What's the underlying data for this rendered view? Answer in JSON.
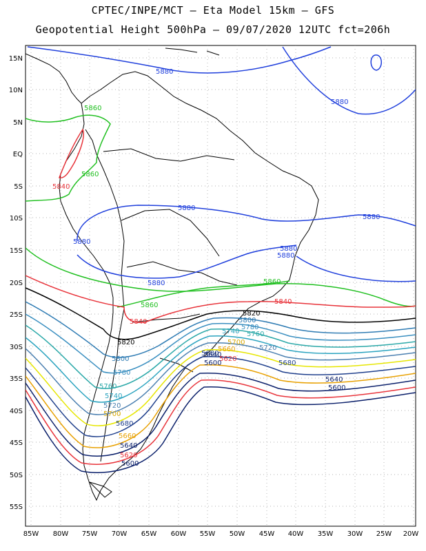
{
  "header": {
    "line1": "CPTEC/INPE/MCT –  Eta Model 15km – GFS",
    "line2": "Geopotential Height 500hPa – 09/07/2020 12UTC fct=206h"
  },
  "axes": {
    "lat_labels": [
      "15N",
      "10N",
      "5N",
      "EQ",
      "5S",
      "10S",
      "15S",
      "20S",
      "25S",
      "30S",
      "35S",
      "40S",
      "45S",
      "50S",
      "55S"
    ],
    "lon_labels": [
      "85W",
      "80W",
      "75W",
      "70W",
      "65W",
      "60W",
      "55W",
      "50W",
      "45W",
      "40W",
      "35W",
      "30W",
      "25W",
      "20W"
    ]
  },
  "contours": [
    {
      "level": "5880",
      "color": "#1f3fdc"
    },
    {
      "level": "5860",
      "color": "#22c022"
    },
    {
      "level": "5840",
      "color": "#e8333a"
    },
    {
      "level": "5820",
      "color": "#000000"
    },
    {
      "level": "5800",
      "color": "#2e7bb3"
    },
    {
      "level": "5780",
      "color": "#3a8fc0"
    },
    {
      "level": "5760",
      "color": "#2aa8a8"
    },
    {
      "level": "5740",
      "color": "#2aa3bf"
    },
    {
      "level": "5720",
      "color": "#4a7fb0"
    },
    {
      "level": "5700",
      "color": "#e6e600"
    },
    {
      "level": "5680",
      "color": "#1f3f8c"
    },
    {
      "level": "5660",
      "color": "#e8a000"
    },
    {
      "level": "5640",
      "color": "#0a1f6a"
    },
    {
      "level": "5620",
      "color": "#e8333a"
    },
    {
      "level": "5600",
      "color": "#0a1f6a"
    }
  ],
  "contour_labels": [
    {
      "text": "5880",
      "color": "#1f3fdc"
    },
    {
      "text": "5880",
      "color": "#1f3fdc"
    },
    {
      "text": "5880",
      "color": "#1f3fdc"
    },
    {
      "text": "5880",
      "color": "#1f3fdc"
    },
    {
      "text": "5880",
      "color": "#1f3fdc"
    },
    {
      "text": "5880",
      "color": "#1f3fdc"
    },
    {
      "text": "5880",
      "color": "#1f3fdc"
    },
    {
      "text": "5880",
      "color": "#1f3fdc"
    },
    {
      "text": "5860",
      "color": "#22c022"
    },
    {
      "text": "5860",
      "color": "#22c022"
    },
    {
      "text": "5860",
      "color": "#22c022"
    },
    {
      "text": "5860",
      "color": "#22c022"
    },
    {
      "text": "5840",
      "color": "#e8333a"
    },
    {
      "text": "5840",
      "color": "#e8333a"
    },
    {
      "text": "5840",
      "color": "#e8333a"
    },
    {
      "text": "5820",
      "color": "#000000"
    },
    {
      "text": "5820",
      "color": "#000000"
    },
    {
      "text": "5800",
      "color": "#2e7bb3"
    },
    {
      "text": "5800",
      "color": "#2e7bb3"
    },
    {
      "text": "5780",
      "color": "#3a8fc0"
    },
    {
      "text": "5780",
      "color": "#3a8fc0"
    },
    {
      "text": "5760",
      "color": "#2aa8a8"
    },
    {
      "text": "5760",
      "color": "#2aa8a8"
    },
    {
      "text": "5740",
      "color": "#2aa3bf"
    },
    {
      "text": "5740",
      "color": "#2aa3bf"
    },
    {
      "text": "5720",
      "color": "#4a7fb0"
    },
    {
      "text": "5720",
      "color": "#4a7fb0"
    },
    {
      "text": "5700",
      "color": "#e6e600"
    },
    {
      "text": "5700",
      "color": "#e6e600"
    },
    {
      "text": "5680",
      "color": "#1f3f8c"
    },
    {
      "text": "5680",
      "color": "#1f3f8c"
    },
    {
      "text": "5680",
      "color": "#1f3f8c"
    },
    {
      "text": "5660",
      "color": "#e8a000"
    },
    {
      "text": "5660",
      "color": "#e8a000"
    },
    {
      "text": "5640",
      "color": "#0a1f6a"
    },
    {
      "text": "5640",
      "color": "#0a1f6a"
    },
    {
      "text": "5640",
      "color": "#0a1f6a"
    },
    {
      "text": "5620",
      "color": "#e8333a"
    },
    {
      "text": "5620",
      "color": "#e8333a"
    },
    {
      "text": "5600",
      "color": "#0a1f6a"
    },
    {
      "text": "5600",
      "color": "#0a1f6a"
    },
    {
      "text": "5600",
      "color": "#0a1f6a"
    }
  ]
}
